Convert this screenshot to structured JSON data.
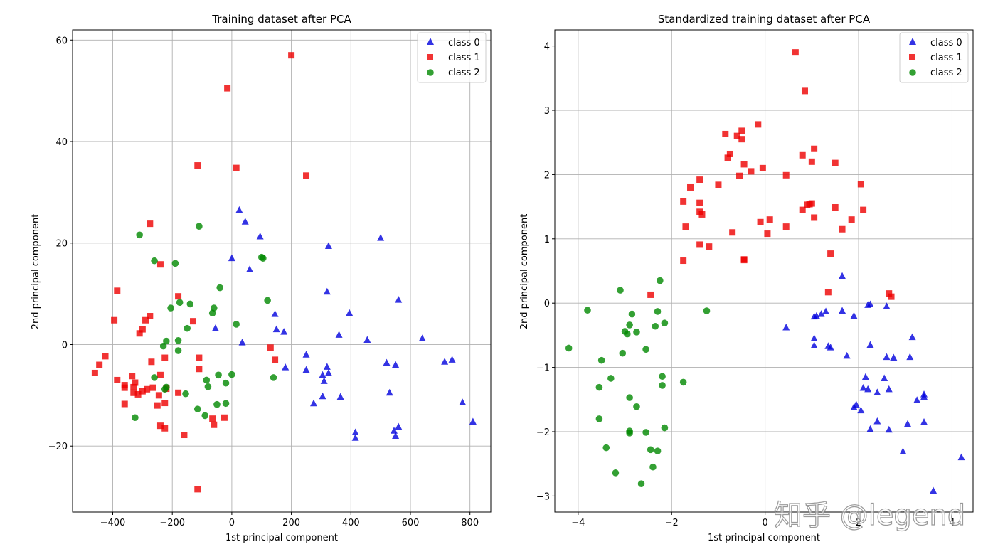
{
  "watermark": "知乎 @legend",
  "legend_entries": [
    {
      "name": "class 0",
      "color": "#0000dd",
      "marker": "triangle"
    },
    {
      "name": "class 1",
      "color": "#ee0000",
      "marker": "square"
    },
    {
      "name": "class 2",
      "color": "#008800",
      "marker": "circle"
    }
  ],
  "chart_data": [
    {
      "type": "scatter",
      "title": "Training dataset after PCA",
      "xlabel": "1st principal component",
      "ylabel": "2nd principal component",
      "xlim": [
        -535,
        870
      ],
      "ylim": [
        -33,
        62
      ],
      "xticks": [
        -400,
        -200,
        0,
        200,
        400,
        600,
        800
      ],
      "yticks": [
        -20,
        0,
        20,
        40,
        60
      ],
      "grid": true,
      "legend_position": "top-right",
      "series": [
        {
          "name": "class 0",
          "points": [
            [
              25,
              26.5
            ],
            [
              45,
              24.2
            ],
            [
              95,
              21.3
            ],
            [
              0,
              17
            ],
            [
              60,
              14.8
            ],
            [
              -55,
              3.2
            ],
            [
              35,
              0.4
            ],
            [
              145,
              6
            ],
            [
              150,
              3
            ],
            [
              175,
              2.5
            ],
            [
              180,
              -4.5
            ],
            [
              250,
              -2
            ],
            [
              250,
              -5
            ],
            [
              325,
              19.4
            ],
            [
              320,
              10.4
            ],
            [
              320,
              -4.4
            ],
            [
              325,
              -5.6
            ],
            [
              310,
              -7.2
            ],
            [
              305,
              -6
            ],
            [
              275,
              -11.6
            ],
            [
              305,
              -10.2
            ],
            [
              365,
              -10.3
            ],
            [
              360,
              1.9
            ],
            [
              395,
              6.2
            ],
            [
              415,
              -17.3
            ],
            [
              415,
              -18.4
            ],
            [
              455,
              0.9
            ],
            [
              500,
              21
            ],
            [
              520,
              -3.6
            ],
            [
              530,
              -9.5
            ],
            [
              545,
              -17
            ],
            [
              550,
              -4
            ],
            [
              550,
              -18
            ],
            [
              560,
              -16.2
            ],
            [
              560,
              8.8
            ],
            [
              640,
              1.2
            ],
            [
              715,
              -3.4
            ],
            [
              740,
              -3
            ],
            [
              775,
              -11.4
            ],
            [
              810,
              -15.2
            ]
          ]
        },
        {
          "name": "class 1",
          "points": [
            [
              200,
              57
            ],
            [
              -15,
              50.5
            ],
            [
              -115,
              35.3
            ],
            [
              15,
              34.8
            ],
            [
              250,
              33.3
            ],
            [
              -275,
              23.8
            ],
            [
              -240,
              15.8
            ],
            [
              -385,
              10.6
            ],
            [
              -180,
              9.5
            ],
            [
              -395,
              4.8
            ],
            [
              -275,
              5.6
            ],
            [
              -290,
              4.8
            ],
            [
              -300,
              3
            ],
            [
              -310,
              2.2
            ],
            [
              -130,
              4.6
            ],
            [
              -425,
              -2.3
            ],
            [
              -445,
              -4
            ],
            [
              -460,
              -5.6
            ],
            [
              -385,
              -7
            ],
            [
              -360,
              -8
            ],
            [
              -360,
              -8.5
            ],
            [
              -335,
              -6.2
            ],
            [
              -330,
              -8.4
            ],
            [
              -325,
              -7.5
            ],
            [
              -330,
              -9.5
            ],
            [
              -315,
              -9.8
            ],
            [
              -300,
              -9.2
            ],
            [
              -285,
              -8.8
            ],
            [
              -265,
              -8.5
            ],
            [
              -270,
              -3.4
            ],
            [
              -240,
              -6
            ],
            [
              -225,
              -2.6
            ],
            [
              -220,
              -8.7
            ],
            [
              -245,
              -10
            ],
            [
              -225,
              -11.5
            ],
            [
              -250,
              -12
            ],
            [
              -360,
              -11.7
            ],
            [
              -240,
              -16
            ],
            [
              -225,
              -16.5
            ],
            [
              -160,
              -17.8
            ],
            [
              -110,
              -2.6
            ],
            [
              -110,
              -4.8
            ],
            [
              -180,
              -9.5
            ],
            [
              -65,
              -14.6
            ],
            [
              -60,
              -15.8
            ],
            [
              -25,
              -14.4
            ],
            [
              130,
              -0.6
            ],
            [
              145,
              -3
            ],
            [
              -115,
              -28.5
            ]
          ]
        },
        {
          "name": "class 2",
          "points": [
            [
              -310,
              21.6
            ],
            [
              -110,
              23.3
            ],
            [
              -260,
              16.5
            ],
            [
              -190,
              16
            ],
            [
              -40,
              11.2
            ],
            [
              100,
              17.2
            ],
            [
              105,
              17
            ],
            [
              -175,
              8.3
            ],
            [
              -205,
              7.2
            ],
            [
              -140,
              8
            ],
            [
              -60,
              7.2
            ],
            [
              -65,
              6.2
            ],
            [
              120,
              8.7
            ],
            [
              -150,
              3.2
            ],
            [
              -220,
              0.7
            ],
            [
              -230,
              -0.3
            ],
            [
              -180,
              0.8
            ],
            [
              -180,
              -1.2
            ],
            [
              15,
              4
            ],
            [
              -260,
              -6.5
            ],
            [
              -220,
              -8.4
            ],
            [
              -225,
              -8.8
            ],
            [
              -155,
              -9.7
            ],
            [
              -85,
              -7
            ],
            [
              -80,
              -8.3
            ],
            [
              -45,
              -6
            ],
            [
              -20,
              -7.6
            ],
            [
              0,
              -5.9
            ],
            [
              140,
              -6.5
            ],
            [
              -325,
              -14.4
            ],
            [
              -115,
              -12.7
            ],
            [
              -90,
              -14
            ],
            [
              -50,
              -11.8
            ],
            [
              -20,
              -11.6
            ]
          ]
        }
      ]
    },
    {
      "type": "scatter",
      "title": "Standardized training dataset after PCA",
      "xlabel": "1st principal component",
      "ylabel": "2nd principal component",
      "xlim": [
        -4.5,
        4.45
      ],
      "ylim": [
        -3.25,
        4.25
      ],
      "xticks": [
        -4,
        -2,
        0,
        2,
        4
      ],
      "yticks": [
        -3,
        -2,
        -1,
        0,
        1,
        2,
        3,
        4
      ],
      "grid": true,
      "legend_position": "top-right",
      "series": [
        {
          "name": "class 0",
          "points": [
            [
              1.65,
              0.42
            ],
            [
              2.2,
              -0.03
            ],
            [
              2.25,
              -0.02
            ],
            [
              2.6,
              -0.05
            ],
            [
              1.65,
              -0.12
            ],
            [
              1.3,
              -0.13
            ],
            [
              1.2,
              -0.17
            ],
            [
              1.1,
              -0.2
            ],
            [
              1.05,
              -0.21
            ],
            [
              1.9,
              -0.2
            ],
            [
              0.45,
              -0.38
            ],
            [
              1.05,
              -0.55
            ],
            [
              3.15,
              -0.53
            ],
            [
              1.05,
              -0.66
            ],
            [
              1.35,
              -0.67
            ],
            [
              1.4,
              -0.69
            ],
            [
              2.25,
              -0.65
            ],
            [
              1.75,
              -0.82
            ],
            [
              2.6,
              -0.84
            ],
            [
              2.75,
              -0.85
            ],
            [
              3.1,
              -0.84
            ],
            [
              2.15,
              -1.15
            ],
            [
              2.55,
              -1.17
            ],
            [
              2.1,
              -1.32
            ],
            [
              2.2,
              -1.34
            ],
            [
              2.65,
              -1.34
            ],
            [
              2.4,
              -1.39
            ],
            [
              3.4,
              -1.42
            ],
            [
              3.4,
              -1.46
            ],
            [
              3.25,
              -1.51
            ],
            [
              1.95,
              -1.58
            ],
            [
              1.9,
              -1.62
            ],
            [
              2.05,
              -1.67
            ],
            [
              2.4,
              -1.84
            ],
            [
              3.05,
              -1.88
            ],
            [
              3.4,
              -1.85
            ],
            [
              2.25,
              -1.96
            ],
            [
              2.65,
              -1.97
            ],
            [
              2.95,
              -2.31
            ],
            [
              4.2,
              -2.4
            ],
            [
              3.6,
              -2.92
            ]
          ]
        },
        {
          "name": "class 1",
          "points": [
            [
              0.65,
              3.9
            ],
            [
              0.85,
              3.3
            ],
            [
              -0.15,
              2.78
            ],
            [
              -0.5,
              2.68
            ],
            [
              -0.6,
              2.6
            ],
            [
              -0.5,
              2.55
            ],
            [
              -0.85,
              2.63
            ],
            [
              1.05,
              2.4
            ],
            [
              -0.75,
              2.32
            ],
            [
              0.8,
              2.3
            ],
            [
              -0.8,
              2.26
            ],
            [
              1.0,
              2.2
            ],
            [
              1.5,
              2.18
            ],
            [
              -0.45,
              2.16
            ],
            [
              -0.05,
              2.1
            ],
            [
              -0.3,
              2.05
            ],
            [
              0.45,
              1.99
            ],
            [
              -0.55,
              1.98
            ],
            [
              -1.4,
              1.92
            ],
            [
              2.05,
              1.85
            ],
            [
              -1.0,
              1.84
            ],
            [
              -1.6,
              1.8
            ],
            [
              -1.75,
              1.58
            ],
            [
              -1.4,
              1.56
            ],
            [
              0.95,
              1.54
            ],
            [
              1.0,
              1.55
            ],
            [
              0.9,
              1.53
            ],
            [
              0.8,
              1.45
            ],
            [
              1.5,
              1.49
            ],
            [
              2.1,
              1.45
            ],
            [
              -1.4,
              1.42
            ],
            [
              -1.35,
              1.38
            ],
            [
              1.05,
              1.33
            ],
            [
              0.1,
              1.3
            ],
            [
              1.85,
              1.3
            ],
            [
              -0.1,
              1.26
            ],
            [
              1.65,
              1.15
            ],
            [
              -1.7,
              1.19
            ],
            [
              0.45,
              1.19
            ],
            [
              -0.7,
              1.1
            ],
            [
              0.05,
              1.08
            ],
            [
              -1.4,
              0.91
            ],
            [
              -1.2,
              0.88
            ],
            [
              1.4,
              0.77
            ],
            [
              -1.75,
              0.66
            ],
            [
              -0.45,
              0.67
            ],
            [
              -0.45,
              0.68
            ],
            [
              1.35,
              0.17
            ],
            [
              2.65,
              0.15
            ],
            [
              2.7,
              0.1
            ],
            [
              -2.45,
              0.13
            ]
          ]
        },
        {
          "name": "class 2",
          "points": [
            [
              -2.25,
              0.35
            ],
            [
              -3.1,
              0.2
            ],
            [
              -3.8,
              -0.11
            ],
            [
              -2.3,
              -0.13
            ],
            [
              -1.25,
              -0.12
            ],
            [
              -2.85,
              -0.17
            ],
            [
              -2.15,
              -0.31
            ],
            [
              -2.9,
              -0.34
            ],
            [
              -2.35,
              -0.36
            ],
            [
              -3.0,
              -0.44
            ],
            [
              -2.95,
              -0.48
            ],
            [
              -2.75,
              -0.45
            ],
            [
              -4.2,
              -0.7
            ],
            [
              -2.55,
              -0.72
            ],
            [
              -3.05,
              -0.78
            ],
            [
              -3.5,
              -0.89
            ],
            [
              -3.3,
              -1.17
            ],
            [
              -2.2,
              -1.14
            ],
            [
              -2.2,
              -1.28
            ],
            [
              -3.55,
              -1.31
            ],
            [
              -1.75,
              -1.23
            ],
            [
              -2.9,
              -1.47
            ],
            [
              -2.75,
              -1.61
            ],
            [
              -3.55,
              -1.8
            ],
            [
              -2.15,
              -1.94
            ],
            [
              -2.9,
              -1.99
            ],
            [
              -2.9,
              -2.02
            ],
            [
              -2.55,
              -2.01
            ],
            [
              -3.4,
              -2.25
            ],
            [
              -2.45,
              -2.28
            ],
            [
              -2.3,
              -2.3
            ],
            [
              -2.4,
              -2.55
            ],
            [
              -3.2,
              -2.64
            ],
            [
              -2.65,
              -2.81
            ]
          ]
        }
      ]
    }
  ]
}
